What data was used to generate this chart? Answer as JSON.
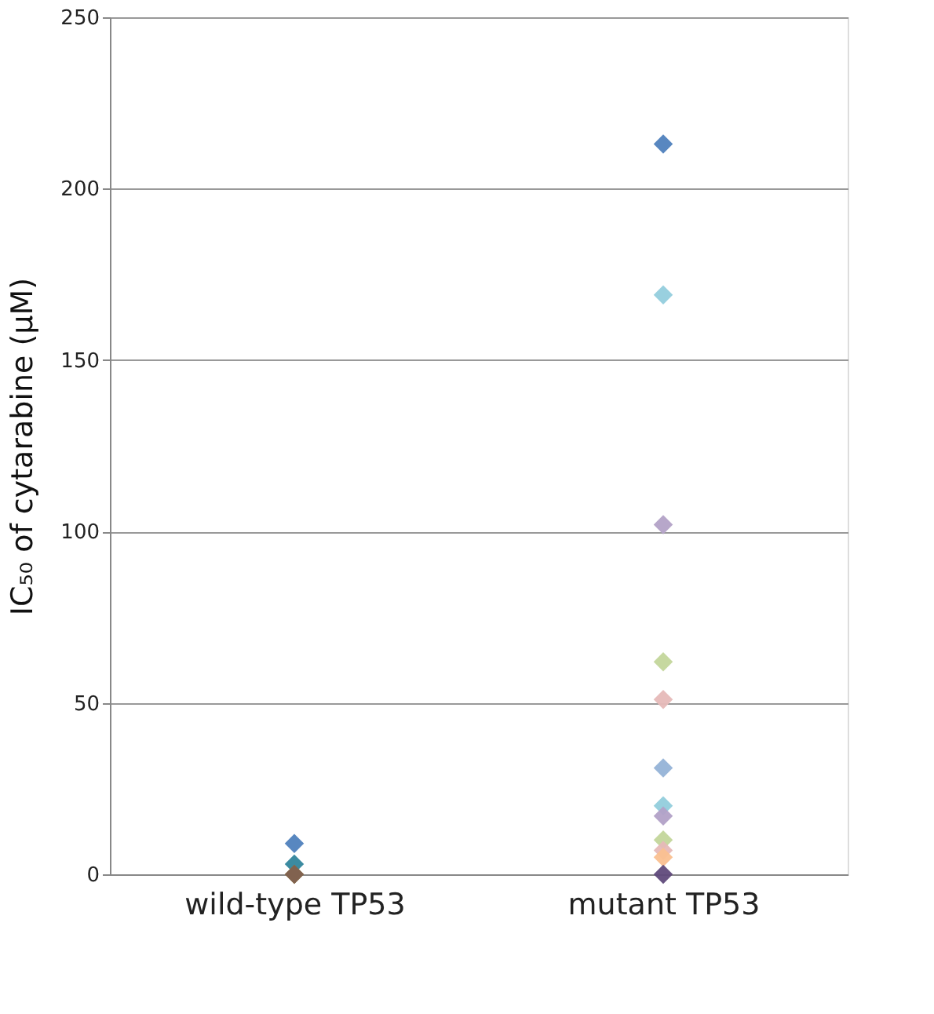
{
  "chart_data": {
    "type": "scatter",
    "categories": [
      "wild-type TP53",
      "mutant TP53"
    ],
    "ylabel": "IC₅₀ of cytarabine (μM)",
    "ylim": [
      0,
      250
    ],
    "yticks": [
      0,
      50,
      100,
      150,
      200,
      250
    ],
    "grid": "y",
    "marker": "diamond",
    "series": [
      {
        "x": [
          "wild-type TP53",
          "wild-type TP53",
          "wild-type TP53",
          "wild-type TP53",
          "wild-type TP53"
        ],
        "values": [
          9,
          3,
          null,
          0,
          0
        ],
        "colors": [
          "#4f81bd",
          "#31859c",
          "#4bacc6",
          "#9b8b3f",
          "#7f6050"
        ]
      },
      {
        "x": [
          "mutant TP53",
          "mutant TP53",
          "mutant TP53",
          "mutant TP53",
          "mutant TP53",
          "mutant TP53",
          "mutant TP53",
          "mutant TP53",
          "mutant TP53",
          "mutant TP53",
          "mutant TP53",
          "mutant TP53",
          "mutant TP53",
          "mutant TP53",
          "mutant TP53"
        ],
        "values": [
          213,
          169,
          102,
          62,
          51,
          31,
          20,
          17,
          10,
          7,
          5,
          null,
          null,
          null,
          0
        ],
        "colors": [
          "#4f81bd",
          "#93cddd",
          "#b3a2c7",
          "#c3d69b",
          "#e6b9b8",
          "#95b3d7",
          "#92cddc",
          "#b2a1c7",
          "#c3d69b",
          "#e6b9b8",
          "#fac090",
          "#4bacc6",
          "#4f81bd",
          "#8064a2",
          "#604a7b"
        ]
      }
    ]
  }
}
